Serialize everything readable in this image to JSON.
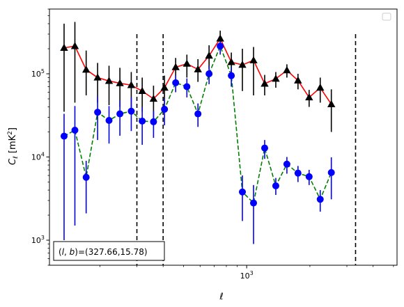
{
  "chart_data": {
    "type": "line",
    "xscale": "log",
    "yscale": "log",
    "xlim": [
      115,
      5200
    ],
    "ylim": [
      500,
      600000
    ],
    "xlabel": "ℓ",
    "ylabel": "C_ℓ [mK²]",
    "x_tick_labels": [
      {
        "value": 1000,
        "label": "10³"
      }
    ],
    "y_tick_labels": [
      {
        "value": 1000,
        "label": "10³"
      },
      {
        "value": 10000,
        "label": "10⁴"
      },
      {
        "value": 100000,
        "label": "10⁵"
      }
    ],
    "vlines": [
      300,
      400,
      3300
    ],
    "legend": {
      "placement": "top-right",
      "entries": []
    },
    "annotation": {
      "text": "(l, b)=(327.66,15.78)",
      "placement": "bottom-left"
    },
    "series": [
      {
        "color": "#ff0000",
        "linestyle": "solid",
        "marker": "triangle",
        "marker_color": "#000000",
        "errorbar_color": "#000000",
        "points": [
          {
            "x": 135,
            "y": 205000,
            "lo": 35000,
            "hi": 400000
          },
          {
            "x": 152,
            "y": 215000,
            "lo": 45000,
            "hi": 420000
          },
          {
            "x": 172,
            "y": 112000,
            "lo": 55000,
            "hi": 190000
          },
          {
            "x": 195,
            "y": 90000,
            "lo": 45000,
            "hi": 135000
          },
          {
            "x": 221,
            "y": 82000,
            "lo": 42000,
            "hi": 125000
          },
          {
            "x": 249,
            "y": 77000,
            "lo": 40000,
            "hi": 118000
          },
          {
            "x": 282,
            "y": 73000,
            "lo": 38000,
            "hi": 105000
          },
          {
            "x": 318,
            "y": 62000,
            "lo": 35000,
            "hi": 90000
          },
          {
            "x": 360,
            "y": 50000,
            "lo": 27000,
            "hi": 72000
          },
          {
            "x": 406,
            "y": 68000,
            "lo": 40000,
            "hi": 95000
          },
          {
            "x": 459,
            "y": 120000,
            "lo": 80000,
            "hi": 155000
          },
          {
            "x": 519,
            "y": 132000,
            "lo": 90000,
            "hi": 170000
          },
          {
            "x": 586,
            "y": 113000,
            "lo": 80000,
            "hi": 150000
          },
          {
            "x": 662,
            "y": 165000,
            "lo": 115000,
            "hi": 220000
          },
          {
            "x": 748,
            "y": 265000,
            "lo": 210000,
            "hi": 330000
          },
          {
            "x": 845,
            "y": 138000,
            "lo": 95000,
            "hi": 180000
          },
          {
            "x": 954,
            "y": 128000,
            "lo": 62000,
            "hi": 200000
          },
          {
            "x": 1078,
            "y": 145000,
            "lo": 55000,
            "hi": 210000
          },
          {
            "x": 1218,
            "y": 76000,
            "lo": 55000,
            "hi": 97000
          },
          {
            "x": 1376,
            "y": 87000,
            "lo": 68000,
            "hi": 105000
          },
          {
            "x": 1554,
            "y": 110000,
            "lo": 90000,
            "hi": 130000
          },
          {
            "x": 1755,
            "y": 83000,
            "lo": 65000,
            "hi": 100000
          },
          {
            "x": 1983,
            "y": 52000,
            "lo": 40000,
            "hi": 64000
          },
          {
            "x": 2240,
            "y": 68000,
            "lo": 45000,
            "hi": 90000
          },
          {
            "x": 2530,
            "y": 43000,
            "lo": 20000,
            "hi": 65000
          }
        ]
      },
      {
        "color": "#008000",
        "linestyle": "dashed",
        "marker": "circle",
        "marker_color": "#0000ff",
        "errorbar_color": "#0000ff",
        "points": [
          {
            "x": 135,
            "y": 17800,
            "lo": 1000,
            "hi": 33000
          },
          {
            "x": 152,
            "y": 21000,
            "lo": 1500,
            "hi": 41000
          },
          {
            "x": 172,
            "y": 5700,
            "lo": 2100,
            "hi": 9000
          },
          {
            "x": 195,
            "y": 34500,
            "lo": 16000,
            "hi": 54000
          },
          {
            "x": 221,
            "y": 27500,
            "lo": 14500,
            "hi": 41000
          },
          {
            "x": 249,
            "y": 33000,
            "lo": 18000,
            "hi": 48000
          },
          {
            "x": 282,
            "y": 35500,
            "lo": 20500,
            "hi": 52000
          },
          {
            "x": 318,
            "y": 27000,
            "lo": 14000,
            "hi": 40000
          },
          {
            "x": 360,
            "y": 26500,
            "lo": 17000,
            "hi": 36000
          },
          {
            "x": 406,
            "y": 37500,
            "lo": 24000,
            "hi": 50000
          },
          {
            "x": 459,
            "y": 78000,
            "lo": 60000,
            "hi": 96000
          },
          {
            "x": 519,
            "y": 70000,
            "lo": 52000,
            "hi": 88000
          },
          {
            "x": 586,
            "y": 33000,
            "lo": 23000,
            "hi": 44000
          },
          {
            "x": 662,
            "y": 100000,
            "lo": 75000,
            "hi": 125000
          },
          {
            "x": 748,
            "y": 215000,
            "lo": 170000,
            "hi": 260000
          },
          {
            "x": 845,
            "y": 95000,
            "lo": 70000,
            "hi": 120000
          },
          {
            "x": 954,
            "y": 3800,
            "lo": 1700,
            "hi": 6000
          },
          {
            "x": 1078,
            "y": 2800,
            "lo": 900,
            "hi": 4600
          },
          {
            "x": 1218,
            "y": 12800,
            "lo": 9500,
            "hi": 16000
          },
          {
            "x": 1376,
            "y": 4500,
            "lo": 3500,
            "hi": 5600
          },
          {
            "x": 1554,
            "y": 8200,
            "lo": 6300,
            "hi": 10000
          },
          {
            "x": 1755,
            "y": 6400,
            "lo": 5000,
            "hi": 7800
          },
          {
            "x": 1983,
            "y": 5800,
            "lo": 4600,
            "hi": 7000
          },
          {
            "x": 2240,
            "y": 3100,
            "lo": 2200,
            "hi": 4000
          },
          {
            "x": 2530,
            "y": 6500,
            "lo": 3100,
            "hi": 9900
          }
        ]
      }
    ]
  }
}
